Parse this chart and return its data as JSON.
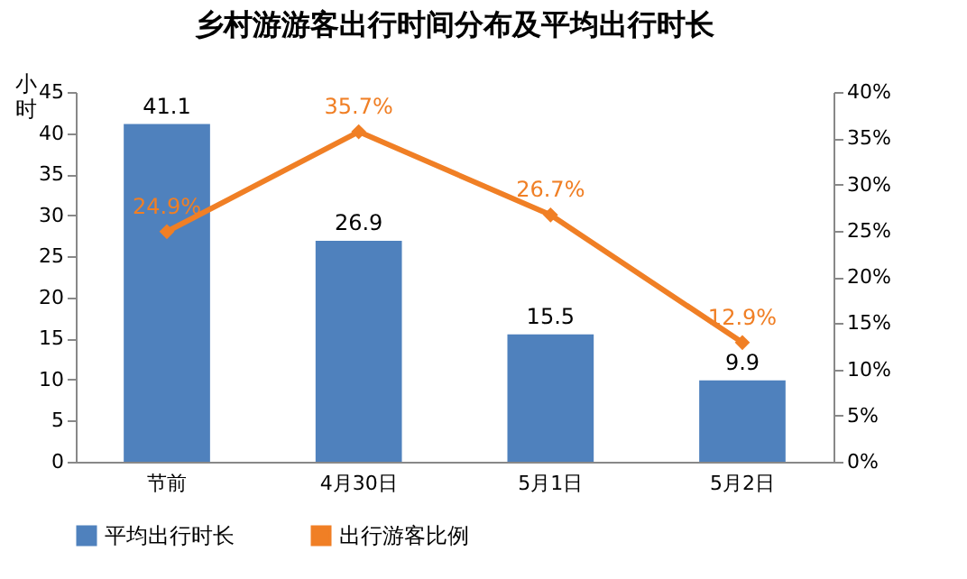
{
  "chart_data": {
    "type": "bar",
    "title": "乡村游游客出行时间分布及平均出行时长",
    "ylabel": "小时",
    "categories": [
      "节前",
      "4月30日",
      "5月1日",
      "5月2日"
    ],
    "series": [
      {
        "name": "平均出行时长",
        "color": "#4f81bd",
        "values": [
          41.1,
          26.9,
          15.5,
          9.9
        ],
        "value_labels": [
          "41.1",
          "26.9",
          "15.5",
          "9.9"
        ]
      },
      {
        "name": "出行游客比例",
        "type": "line",
        "axis": "y2",
        "color": "#f07f25",
        "values": [
          24.9,
          35.7,
          26.7,
          12.9
        ],
        "value_labels": [
          "24.9%",
          "35.7%",
          "26.7%",
          "12.9%"
        ],
        "marker": "diamond"
      }
    ],
    "ylim": [
      0,
      45
    ],
    "yticks": [
      0,
      5,
      10,
      15,
      20,
      25,
      30,
      35,
      40,
      45
    ],
    "y2lim": [
      0,
      40
    ],
    "y2ticks": [
      {
        "value": 0,
        "label": "0%"
      },
      {
        "value": 5,
        "label": "5%"
      },
      {
        "value": 10,
        "label": "10%"
      },
      {
        "value": 15,
        "label": "15%"
      },
      {
        "value": 20,
        "label": "20%"
      },
      {
        "value": 25,
        "label": "25%"
      },
      {
        "value": 30,
        "label": "30%"
      },
      {
        "value": 35,
        "label": "35%"
      },
      {
        "value": 40,
        "label": "40%"
      }
    ],
    "grid": false,
    "legend": "bottom"
  }
}
